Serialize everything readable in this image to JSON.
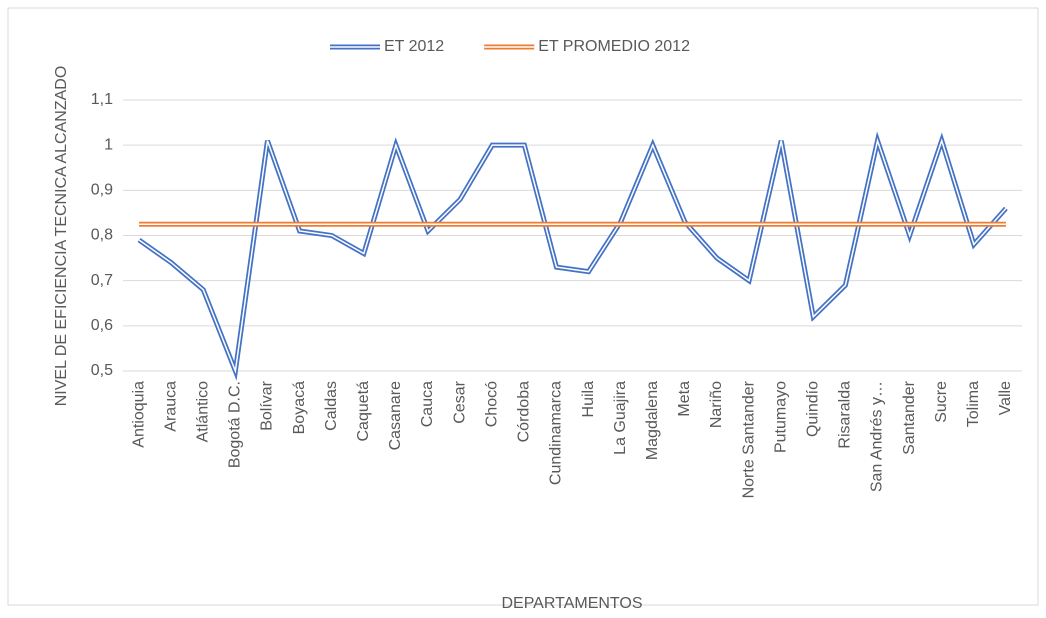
{
  "chart_data": {
    "type": "line",
    "x_label": "DEPARTAMENTOS",
    "y_label": "NIVEL DE EFICIENCIA TECNICA ALCANZADO",
    "categories": [
      "Antioquia",
      "Arauca",
      "Atlántico",
      "Bogotá D.C.",
      "Bolívar",
      "Boyacá",
      "Caldas",
      "Caquetá",
      "Casanare",
      "Cauca",
      "Cesar",
      "Chocó",
      "Córdoba",
      "Cundinamarca",
      "Huila",
      "La Guajira",
      "Magdalena",
      "Meta",
      "Nariño",
      "Norte Santander",
      "Putumayo",
      "Quindío",
      "Risaralda",
      "San Andrés y…",
      "Santander",
      "Sucre",
      "Tolima",
      "Valle"
    ],
    "series": [
      {
        "name": "ET 2012",
        "color": "#4472c4",
        "values": [
          0.79,
          0.74,
          0.68,
          0.5,
          1.01,
          0.81,
          0.8,
          0.76,
          1.0,
          0.81,
          0.88,
          1.0,
          1.0,
          0.73,
          0.72,
          0.83,
          1.0,
          0.83,
          0.75,
          0.7,
          1.01,
          0.62,
          0.69,
          1.01,
          0.8,
          1.01,
          0.78,
          0.86
        ]
      },
      {
        "name": "ET PROMEDIO 2012",
        "color": "#ed7d31",
        "values": [
          0.825,
          0.825,
          0.825,
          0.825,
          0.825,
          0.825,
          0.825,
          0.825,
          0.825,
          0.825,
          0.825,
          0.825,
          0.825,
          0.825,
          0.825,
          0.825,
          0.825,
          0.825,
          0.825,
          0.825,
          0.825,
          0.825,
          0.825,
          0.825,
          0.825,
          0.825,
          0.825,
          0.825
        ]
      }
    ],
    "ylim": [
      0.5,
      1.1
    ],
    "yticks": [
      {
        "value": 0.5,
        "label": "0,5"
      },
      {
        "value": 0.6,
        "label": "0,6"
      },
      {
        "value": 0.7,
        "label": "0,7"
      },
      {
        "value": 0.8,
        "label": "0,8"
      },
      {
        "value": 0.9,
        "label": "0,9"
      },
      1,
      {
        "value": 1.1,
        "label": "1,1"
      }
    ],
    "grid": true,
    "legend": "top"
  }
}
